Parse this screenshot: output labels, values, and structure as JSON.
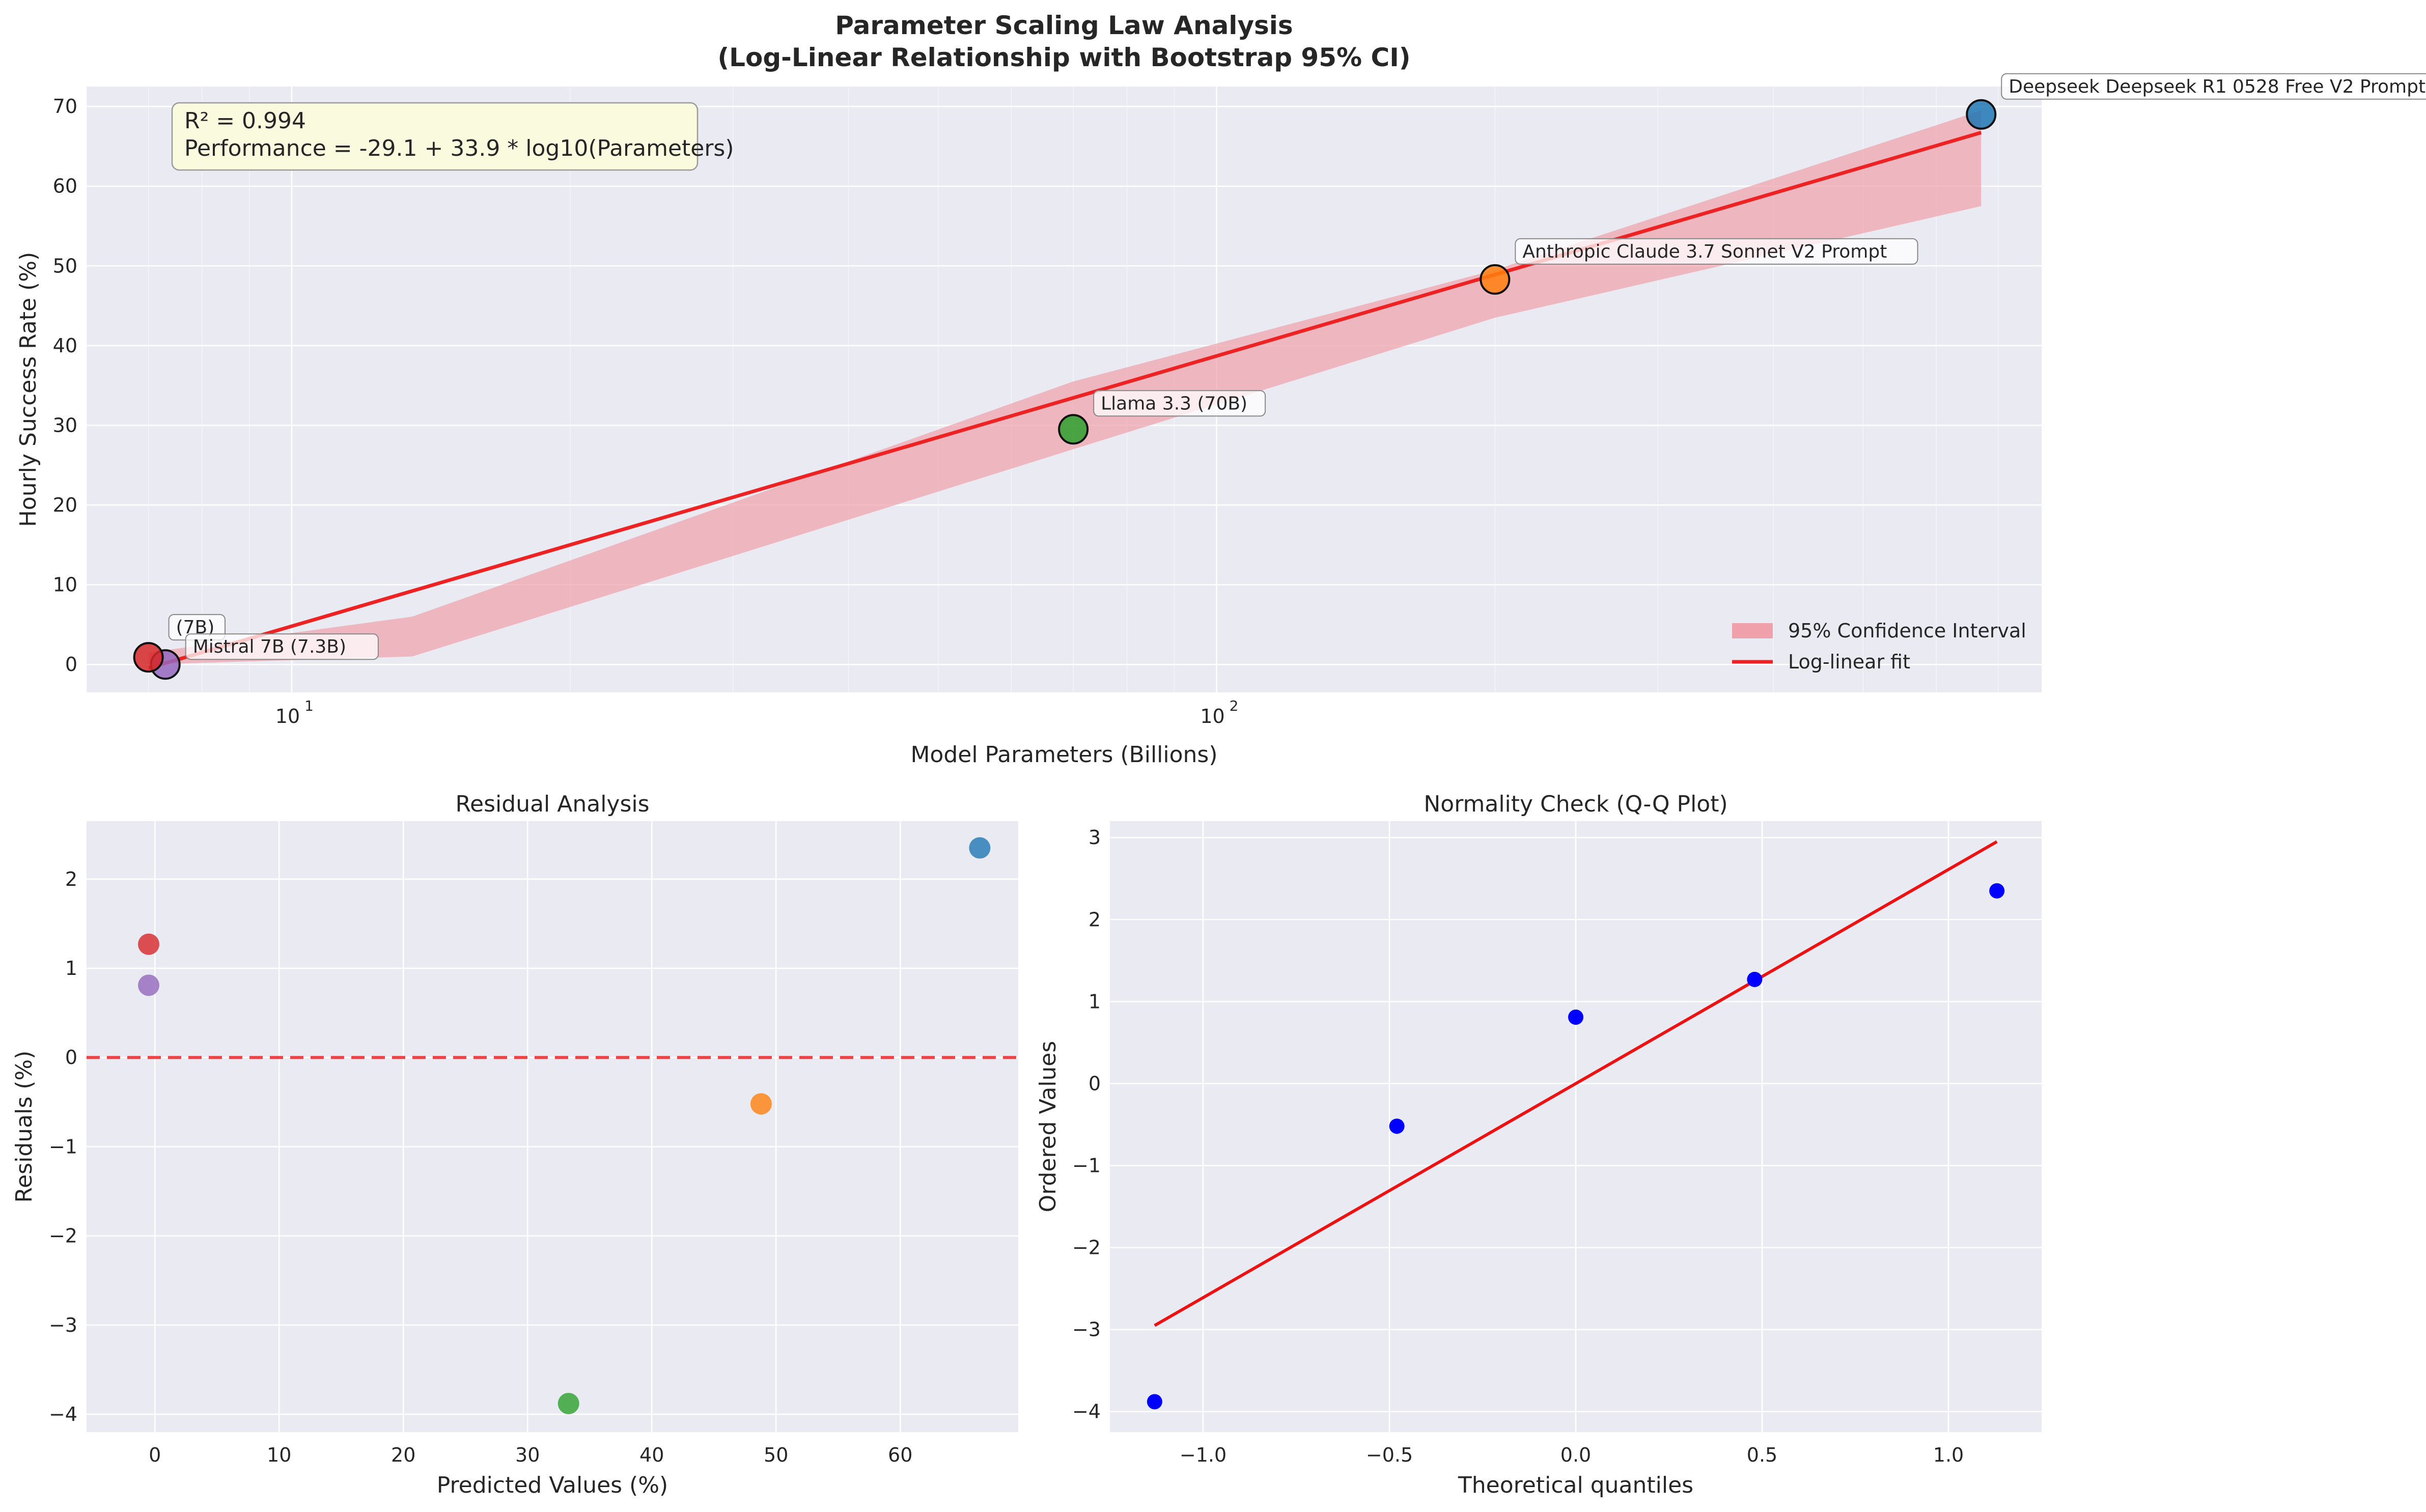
{
  "colors": {
    "axes_bg": "#eaeaf2",
    "grid": "#ffffff",
    "fit_line": "#ee2222",
    "ci_fill": "#f0a0aa",
    "points": [
      "#d62728",
      "#9467bd",
      "#2ca02c",
      "#ff7f0e",
      "#1f77b4"
    ],
    "qq_points": "#0000ff",
    "stats_box_bg": "#fafadf"
  },
  "chart_data": [
    {
      "type": "scatter",
      "title_line1": "Parameter Scaling Law Analysis",
      "title_line2": "(Log-Linear Relationship with Bootstrap 95% CI)",
      "xlabel": "Model Parameters (Billions)",
      "ylabel": "Hourly Success Rate (%)",
      "xscale": "log",
      "xlim": [
        6.0,
        780
      ],
      "ylim": [
        -3.5,
        72.5
      ],
      "x_ticks": [
        10,
        100
      ],
      "x_tick_labels": [
        {
          "base": "10",
          "exp": "1"
        },
        {
          "base": "10",
          "exp": "2"
        }
      ],
      "y_ticks": [
        0,
        10,
        20,
        30,
        40,
        50,
        60,
        70
      ],
      "grid": true,
      "points": [
        {
          "label": "Mistral 7B (7.3B)",
          "x": 7.3,
          "y": 0.0
        },
        {
          "label": "(7B)",
          "x": 7.0,
          "y": 0.9
        },
        {
          "label": "Llama 3.3 (70B)",
          "x": 70,
          "y": 29.5
        },
        {
          "label": "Anthropic Claude 3.7 Sonnet V2 Prompt",
          "x": 200,
          "y": 48.3
        },
        {
          "label": "Deepseek Deepseek R1 0528 Free V2 Prompt",
          "x": 671,
          "y": 69.0
        }
      ],
      "fit": {
        "name": "Log-linear fit",
        "intercept": -29.1,
        "slope": 33.9,
        "x_range": [
          7.0,
          671
        ]
      },
      "ci": {
        "name": "95% Confidence Interval",
        "x": [
          7.0,
          13.5,
          70,
          200,
          671
        ],
        "lower": [
          0.0,
          1.0,
          27.0,
          43.5,
          57.5
        ],
        "upper": [
          1.5,
          6.0,
          35.5,
          49.5,
          69.5
        ]
      },
      "stats_box": {
        "r2": "R² = 0.994",
        "equation": "Performance = -29.1 + 33.9 * log10(Parameters)"
      },
      "legend_position": "lower-right"
    },
    {
      "type": "scatter",
      "title": "Residual Analysis",
      "xlabel": "Predicted Values (%)",
      "ylabel": "Residuals (%)",
      "xlim": [
        -5.5,
        69.5
      ],
      "ylim": [
        -4.2,
        2.65
      ],
      "x_ticks": [
        0,
        10,
        20,
        30,
        40,
        50,
        60
      ],
      "y_ticks": [
        -4,
        -3,
        -2,
        -1,
        0,
        1,
        2
      ],
      "y_tick_labels": [
        "−4",
        "−3",
        "−2",
        "−1",
        "0",
        "1",
        "2"
      ],
      "grid": true,
      "zero_line": 0,
      "points": [
        {
          "x": -0.5,
          "y": 1.27
        },
        {
          "x": -0.5,
          "y": 0.81
        },
        {
          "x": 33.3,
          "y": -3.88
        },
        {
          "x": 48.8,
          "y": -0.52
        },
        {
          "x": 66.4,
          "y": 2.35
        }
      ]
    },
    {
      "type": "scatter",
      "title": "Normality Check (Q-Q Plot)",
      "xlabel": "Theoretical quantiles",
      "ylabel": "Ordered Values",
      "xlim": [
        -1.25,
        1.25
      ],
      "ylim": [
        -4.25,
        3.2
      ],
      "x_ticks": [
        -1.0,
        -0.5,
        0.0,
        0.5,
        1.0
      ],
      "x_tick_labels": [
        "−1.0",
        "−0.5",
        "0.0",
        "0.5",
        "1.0"
      ],
      "y_ticks": [
        -4,
        -3,
        -2,
        -1,
        0,
        1,
        2,
        3
      ],
      "y_tick_labels": [
        "−4",
        "−3",
        "−2",
        "−1",
        "0",
        "1",
        "2",
        "3"
      ],
      "grid": true,
      "points": [
        {
          "x": -1.13,
          "y": -3.88
        },
        {
          "x": -0.48,
          "y": -0.52
        },
        {
          "x": 0.0,
          "y": 0.81
        },
        {
          "x": 0.48,
          "y": 1.27
        },
        {
          "x": 1.13,
          "y": 2.35
        }
      ],
      "ref_line": {
        "x": [
          -1.13,
          1.13
        ],
        "y": [
          -2.95,
          2.95
        ]
      }
    }
  ]
}
